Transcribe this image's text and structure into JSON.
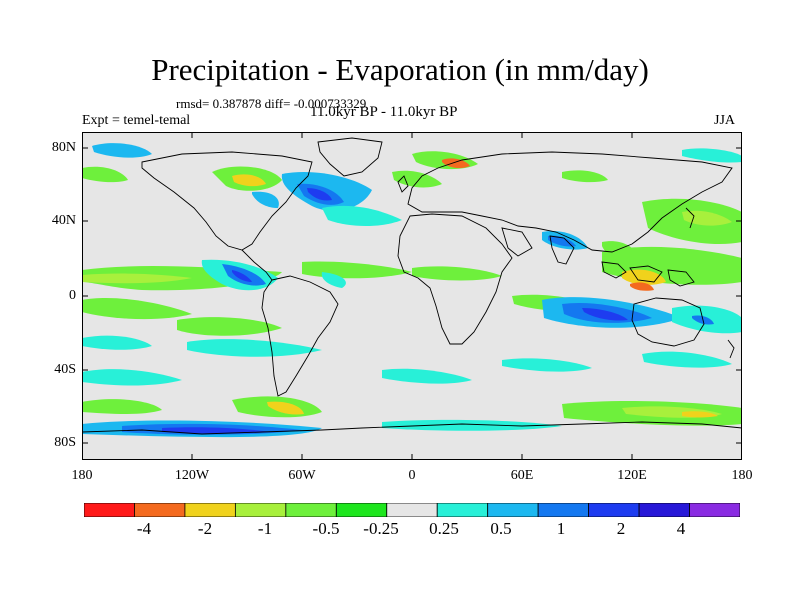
{
  "title": "Precipitation - Evaporation (in mm/day)",
  "stats": "rmsd= 0.387878 diff= -0.000733329",
  "expt": "Expt = temel-temal",
  "period": "11.0kyr BP - 11.0kyr BP",
  "season": "JJA",
  "lat_ticks": [
    "80N",
    "40N",
    "0",
    "40S",
    "80S"
  ],
  "lon_ticks": [
    "180",
    "120W",
    "60W",
    "0",
    "60E",
    "120E",
    "180"
  ],
  "colorbar": {
    "labels": [
      "-4",
      "-2",
      "-1",
      "-0.5",
      "-0.25",
      "0.25",
      "0.5",
      "1",
      "2",
      "4"
    ],
    "colors": [
      "#ff1a1a",
      "#f46a1f",
      "#f0d21c",
      "#a8f03c",
      "#6ef03c",
      "#1ee61e",
      "#e6e6e6",
      "#28f0d8",
      "#1cb8f0",
      "#1478f0",
      "#1e3cf0",
      "#2818d8",
      "#8a2be2"
    ]
  },
  "background_color": "#e6e6e6"
}
